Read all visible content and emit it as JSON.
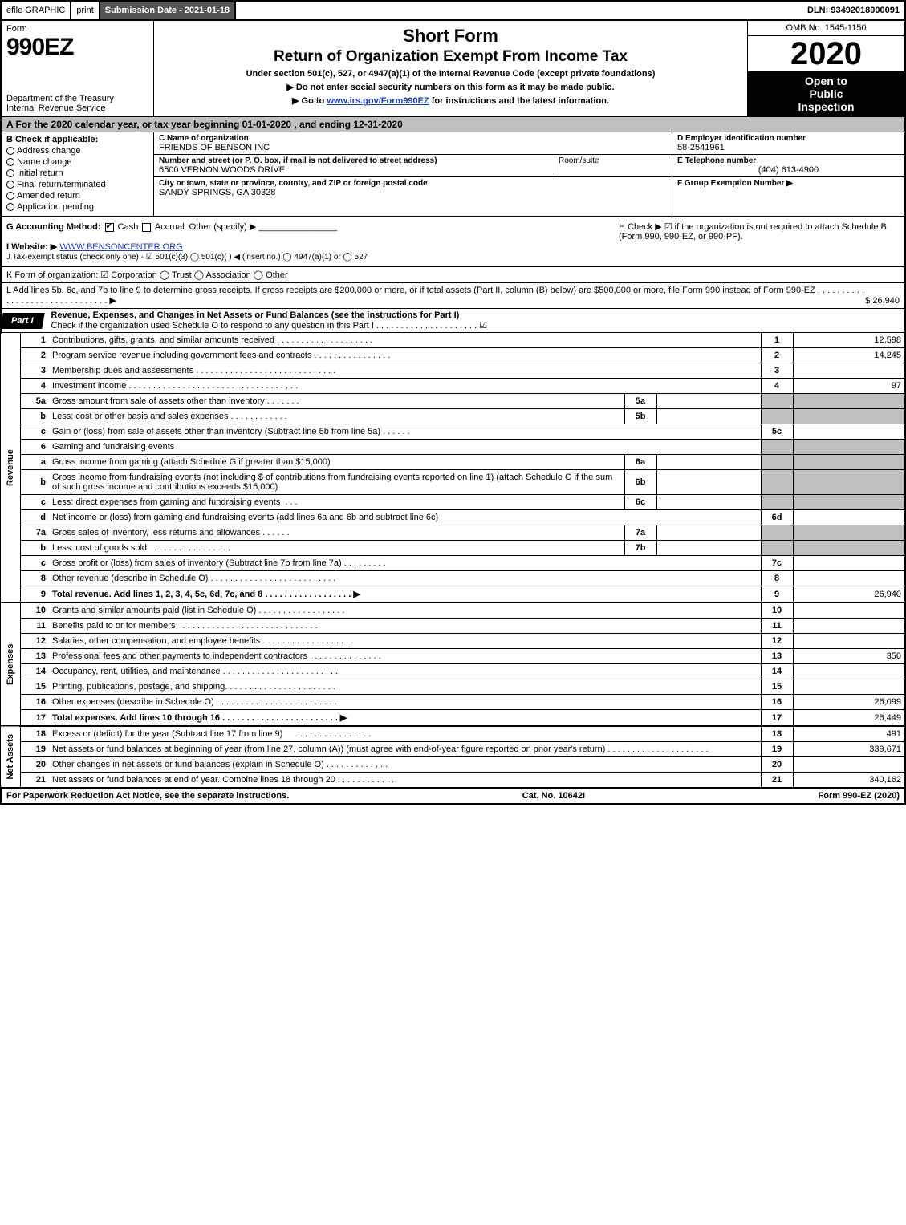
{
  "top_bar": {
    "efile": "efile GRAPHIC",
    "print": "print",
    "submission_date_label": "Submission Date - 2021-01-18",
    "dln": "DLN: 93492018000091"
  },
  "title_block": {
    "form_word": "Form",
    "form_number": "990EZ",
    "department": "Department of the Treasury\nInternal Revenue Service",
    "short_form": "Short Form",
    "main_title": "Return of Organization Exempt From Income Tax",
    "subtitle": "Under section 501(c), 527, or 4947(a)(1) of the Internal Revenue Code (except private foundations)",
    "arrow1": "▶ Do not enter social security numbers on this form as it may be made public.",
    "arrow2_pre": "▶ Go to ",
    "arrow2_link": "www.irs.gov/Form990EZ",
    "arrow2_post": " for instructions and the latest information.",
    "omb": "OMB No. 1545-1150",
    "year": "2020",
    "open_to_public": "Open to\nPublic\nInspection"
  },
  "row_A": "A For the 2020 calendar year, or tax year beginning 01-01-2020 , and ending 12-31-2020",
  "box_B": {
    "heading": "B Check if applicable:",
    "items": [
      "Address change",
      "Name change",
      "Initial return",
      "Final return/terminated",
      "Amended return",
      "Application pending"
    ]
  },
  "box_C": {
    "name_label": "C Name of organization",
    "name": "FRIENDS OF BENSON INC",
    "addr_label": "Number and street (or P. O. box, if mail is not delivered to street address)",
    "addr": "6500 VERNON WOODS DRIVE",
    "room_label": "Room/suite",
    "city_label": "City or town, state or province, country, and ZIP or foreign postal code",
    "city": "SANDY SPRINGS, GA  30328"
  },
  "box_DEF": {
    "d_label": "D Employer identification number",
    "d_val": "58-2541961",
    "e_label": "E Telephone number",
    "e_val": "(404) 613-4900",
    "f_label": "F Group Exemption Number ▶"
  },
  "row_G": {
    "label": "G Accounting Method:",
    "cash": "Cash",
    "accrual": "Accrual",
    "other": "Other (specify) ▶"
  },
  "row_H": "H  Check ▶ ☑ if the organization is not required to attach Schedule B (Form 990, 990-EZ, or 990-PF).",
  "row_I": {
    "label": "I Website: ▶",
    "url": "WWW.BENSONCENTER.ORG"
  },
  "row_J": "J Tax-exempt status (check only one) - ☑ 501(c)(3) ◯ 501(c)(  ) ◀ (insert no.) ◯ 4947(a)(1) or ◯ 527",
  "row_K": "K Form of organization:  ☑ Corporation  ◯ Trust  ◯ Association  ◯ Other",
  "row_L": {
    "text": "L Add lines 5b, 6c, and 7b to line 9 to determine gross receipts. If gross receipts are $200,000 or more, or if total assets (Part II, column (B) below) are $500,000 or more, file Form 990 instead of Form 990-EZ . . . . . . . . . . . . . . . . . . . . . . . . . . . . . . . ▶",
    "amount": "$ 26,940"
  },
  "part1": {
    "tab": "Part I",
    "title": "Revenue, Expenses, and Changes in Net Assets or Fund Balances (see the instructions for Part I)",
    "check_line": "Check if the organization used Schedule O to respond to any question in this Part I . . . . . . . . . . . . . . . . . . . . . ☑"
  },
  "revenue_label": "Revenue",
  "expenses_label": "Expenses",
  "netassets_label": "Net Assets",
  "lines": {
    "l1": {
      "n": "1",
      "d": "Contributions, gifts, grants, and similar amounts received",
      "num": "1",
      "amt": "12,598"
    },
    "l2": {
      "n": "2",
      "d": "Program service revenue including government fees and contracts",
      "num": "2",
      "amt": "14,245"
    },
    "l3": {
      "n": "3",
      "d": "Membership dues and assessments",
      "num": "3",
      "amt": ""
    },
    "l4": {
      "n": "4",
      "d": "Investment income",
      "num": "4",
      "amt": "97"
    },
    "l5a": {
      "n": "5a",
      "d": "Gross amount from sale of assets other than inventory",
      "sub": "5a"
    },
    "l5b": {
      "n": "b",
      "d": "Less: cost or other basis and sales expenses",
      "sub": "5b"
    },
    "l5c": {
      "n": "c",
      "d": "Gain or (loss) from sale of assets other than inventory (Subtract line 5b from line 5a)",
      "num": "5c",
      "amt": ""
    },
    "l6": {
      "n": "6",
      "d": "Gaming and fundraising events"
    },
    "l6a": {
      "n": "a",
      "d": "Gross income from gaming (attach Schedule G if greater than $15,000)",
      "sub": "6a"
    },
    "l6b": {
      "n": "b",
      "d": "Gross income from fundraising events (not including $               of contributions from fundraising events reported on line 1) (attach Schedule G if the sum of such gross income and contributions exceeds $15,000)",
      "sub": "6b"
    },
    "l6c": {
      "n": "c",
      "d": "Less: direct expenses from gaming and fundraising events",
      "sub": "6c"
    },
    "l6d": {
      "n": "d",
      "d": "Net income or (loss) from gaming and fundraising events (add lines 6a and 6b and subtract line 6c)",
      "num": "6d",
      "amt": ""
    },
    "l7a": {
      "n": "7a",
      "d": "Gross sales of inventory, less returns and allowances",
      "sub": "7a"
    },
    "l7b": {
      "n": "b",
      "d": "Less: cost of goods sold",
      "sub": "7b"
    },
    "l7c": {
      "n": "c",
      "d": "Gross profit or (loss) from sales of inventory (Subtract line 7b from line 7a)",
      "num": "7c",
      "amt": ""
    },
    "l8": {
      "n": "8",
      "d": "Other revenue (describe in Schedule O)",
      "num": "8",
      "amt": ""
    },
    "l9": {
      "n": "9",
      "d": "Total revenue. Add lines 1, 2, 3, 4, 5c, 6d, 7c, and 8  . . . . . . . . . . . . . . . . . . ▶",
      "num": "9",
      "amt": "26,940"
    },
    "l10": {
      "n": "10",
      "d": "Grants and similar amounts paid (list in Schedule O)",
      "num": "10",
      "amt": ""
    },
    "l11": {
      "n": "11",
      "d": "Benefits paid to or for members",
      "num": "11",
      "amt": ""
    },
    "l12": {
      "n": "12",
      "d": "Salaries, other compensation, and employee benefits",
      "num": "12",
      "amt": ""
    },
    "l13": {
      "n": "13",
      "d": "Professional fees and other payments to independent contractors",
      "num": "13",
      "amt": "350"
    },
    "l14": {
      "n": "14",
      "d": "Occupancy, rent, utilities, and maintenance",
      "num": "14",
      "amt": ""
    },
    "l15": {
      "n": "15",
      "d": "Printing, publications, postage, and shipping.",
      "num": "15",
      "amt": ""
    },
    "l16": {
      "n": "16",
      "d": "Other expenses (describe in Schedule O)",
      "num": "16",
      "amt": "26,099"
    },
    "l17": {
      "n": "17",
      "d": "Total expenses. Add lines 10 through 16 . . . . . . . . . . . . . . . . . . . . . . . . ▶",
      "num": "17",
      "amt": "26,449"
    },
    "l18": {
      "n": "18",
      "d": "Excess or (deficit) for the year (Subtract line 17 from line 9)",
      "num": "18",
      "amt": "491"
    },
    "l19": {
      "n": "19",
      "d": "Net assets or fund balances at beginning of year (from line 27, column (A)) (must agree with end-of-year figure reported on prior year's return)",
      "num": "19",
      "amt": "339,671"
    },
    "l20": {
      "n": "20",
      "d": "Other changes in net assets or fund balances (explain in Schedule O)",
      "num": "20",
      "amt": ""
    },
    "l21": {
      "n": "21",
      "d": "Net assets or fund balances at end of year. Combine lines 18 through 20",
      "num": "21",
      "amt": "340,162"
    }
  },
  "footer": {
    "left": "For Paperwork Reduction Act Notice, see the separate instructions.",
    "mid": "Cat. No. 10642I",
    "right": "Form 990-EZ (2020)"
  },
  "colors": {
    "shade": "#c0c0c0",
    "dark_bar": "#545454",
    "link": "#1a3fbf"
  }
}
